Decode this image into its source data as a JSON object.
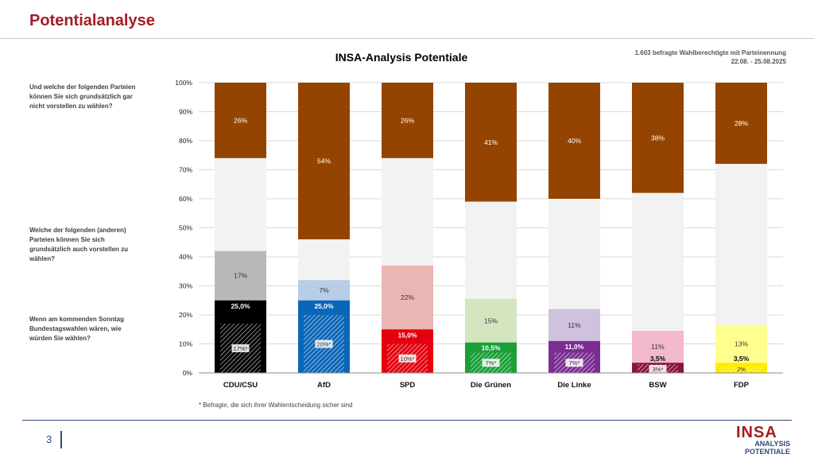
{
  "page": {
    "title": "Potentialanalyse",
    "source_line1": "1.603 befragte Wahlberechtigte mit Parteinennung",
    "source_line2": "22.08. - 25.08.2025",
    "question_rejection": "Und welche der folgenden Parteien können Sie sich grundsätzlich gar nicht vorstellen zu wählen?",
    "question_potential": "Welche der folgenden (anderen) Parteien können Sie sich grundsätzlich auch vorstellen zu wählen?",
    "question_vote": "Wenn am kommenden Sonntag Bundestagswahlen wären, wie würden Sie wählen?",
    "footnote": "* Befragte, die sich ihrer Wahlentscheidung sicher sind",
    "page_number": "3",
    "logo_main": "INSA",
    "logo_line1": "ANALYSIS",
    "logo_line2": "POTENTIALE"
  },
  "chart_data": {
    "type": "bar",
    "stacked": true,
    "title": "INSA-Analysis Potentiale",
    "xlabel": "",
    "ylabel": "",
    "ylim": [
      0,
      100
    ],
    "yticks": [
      "0%",
      "10%",
      "20%",
      "30%",
      "40%",
      "50%",
      "60%",
      "70%",
      "80%",
      "90%",
      "100%"
    ],
    "grid": true,
    "categories": [
      "CDU/CSU",
      "AfD",
      "SPD",
      "Die Grünen",
      "Die Linke",
      "BSW",
      "FDP"
    ],
    "party_colors": [
      "#000000",
      "#0a66b7",
      "#e3000f",
      "#1aa037",
      "#7b2d94",
      "#8a1538",
      "#ffed00"
    ],
    "potential_colors": [
      "#b9b9b9",
      "#b8cde6",
      "#eab5b3",
      "#d5e5c0",
      "#cfc2de",
      "#f2b8cc",
      "#ffff8f"
    ],
    "undecided_color": "#f2f2f2",
    "rejection_color": "#944400",
    "sure_voters": [
      17,
      20,
      10,
      7,
      7,
      3,
      2
    ],
    "sure_labels": [
      "17%*",
      "20%*",
      "10%*",
      "7%*",
      "7%*",
      "3%*",
      "2%"
    ],
    "vote_intention": [
      25.0,
      25.0,
      15.0,
      10.5,
      11.0,
      3.5,
      3.5
    ],
    "vote_labels": [
      "25,0%",
      "25,0%",
      "15,0%",
      "10,5%",
      "11,0%",
      "3,5%",
      "3,5%"
    ],
    "additional_potential": [
      17,
      7,
      22,
      15,
      11,
      11,
      13
    ],
    "potential_labels": [
      "17%",
      "7%",
      "22%",
      "15%",
      "11%",
      "11%",
      "13%"
    ],
    "rejection": [
      26,
      54,
      26,
      41,
      40,
      38,
      28
    ],
    "rejection_labels": [
      "26%",
      "54%",
      "26%",
      "41%",
      "40%",
      "38%",
      "28%"
    ]
  }
}
